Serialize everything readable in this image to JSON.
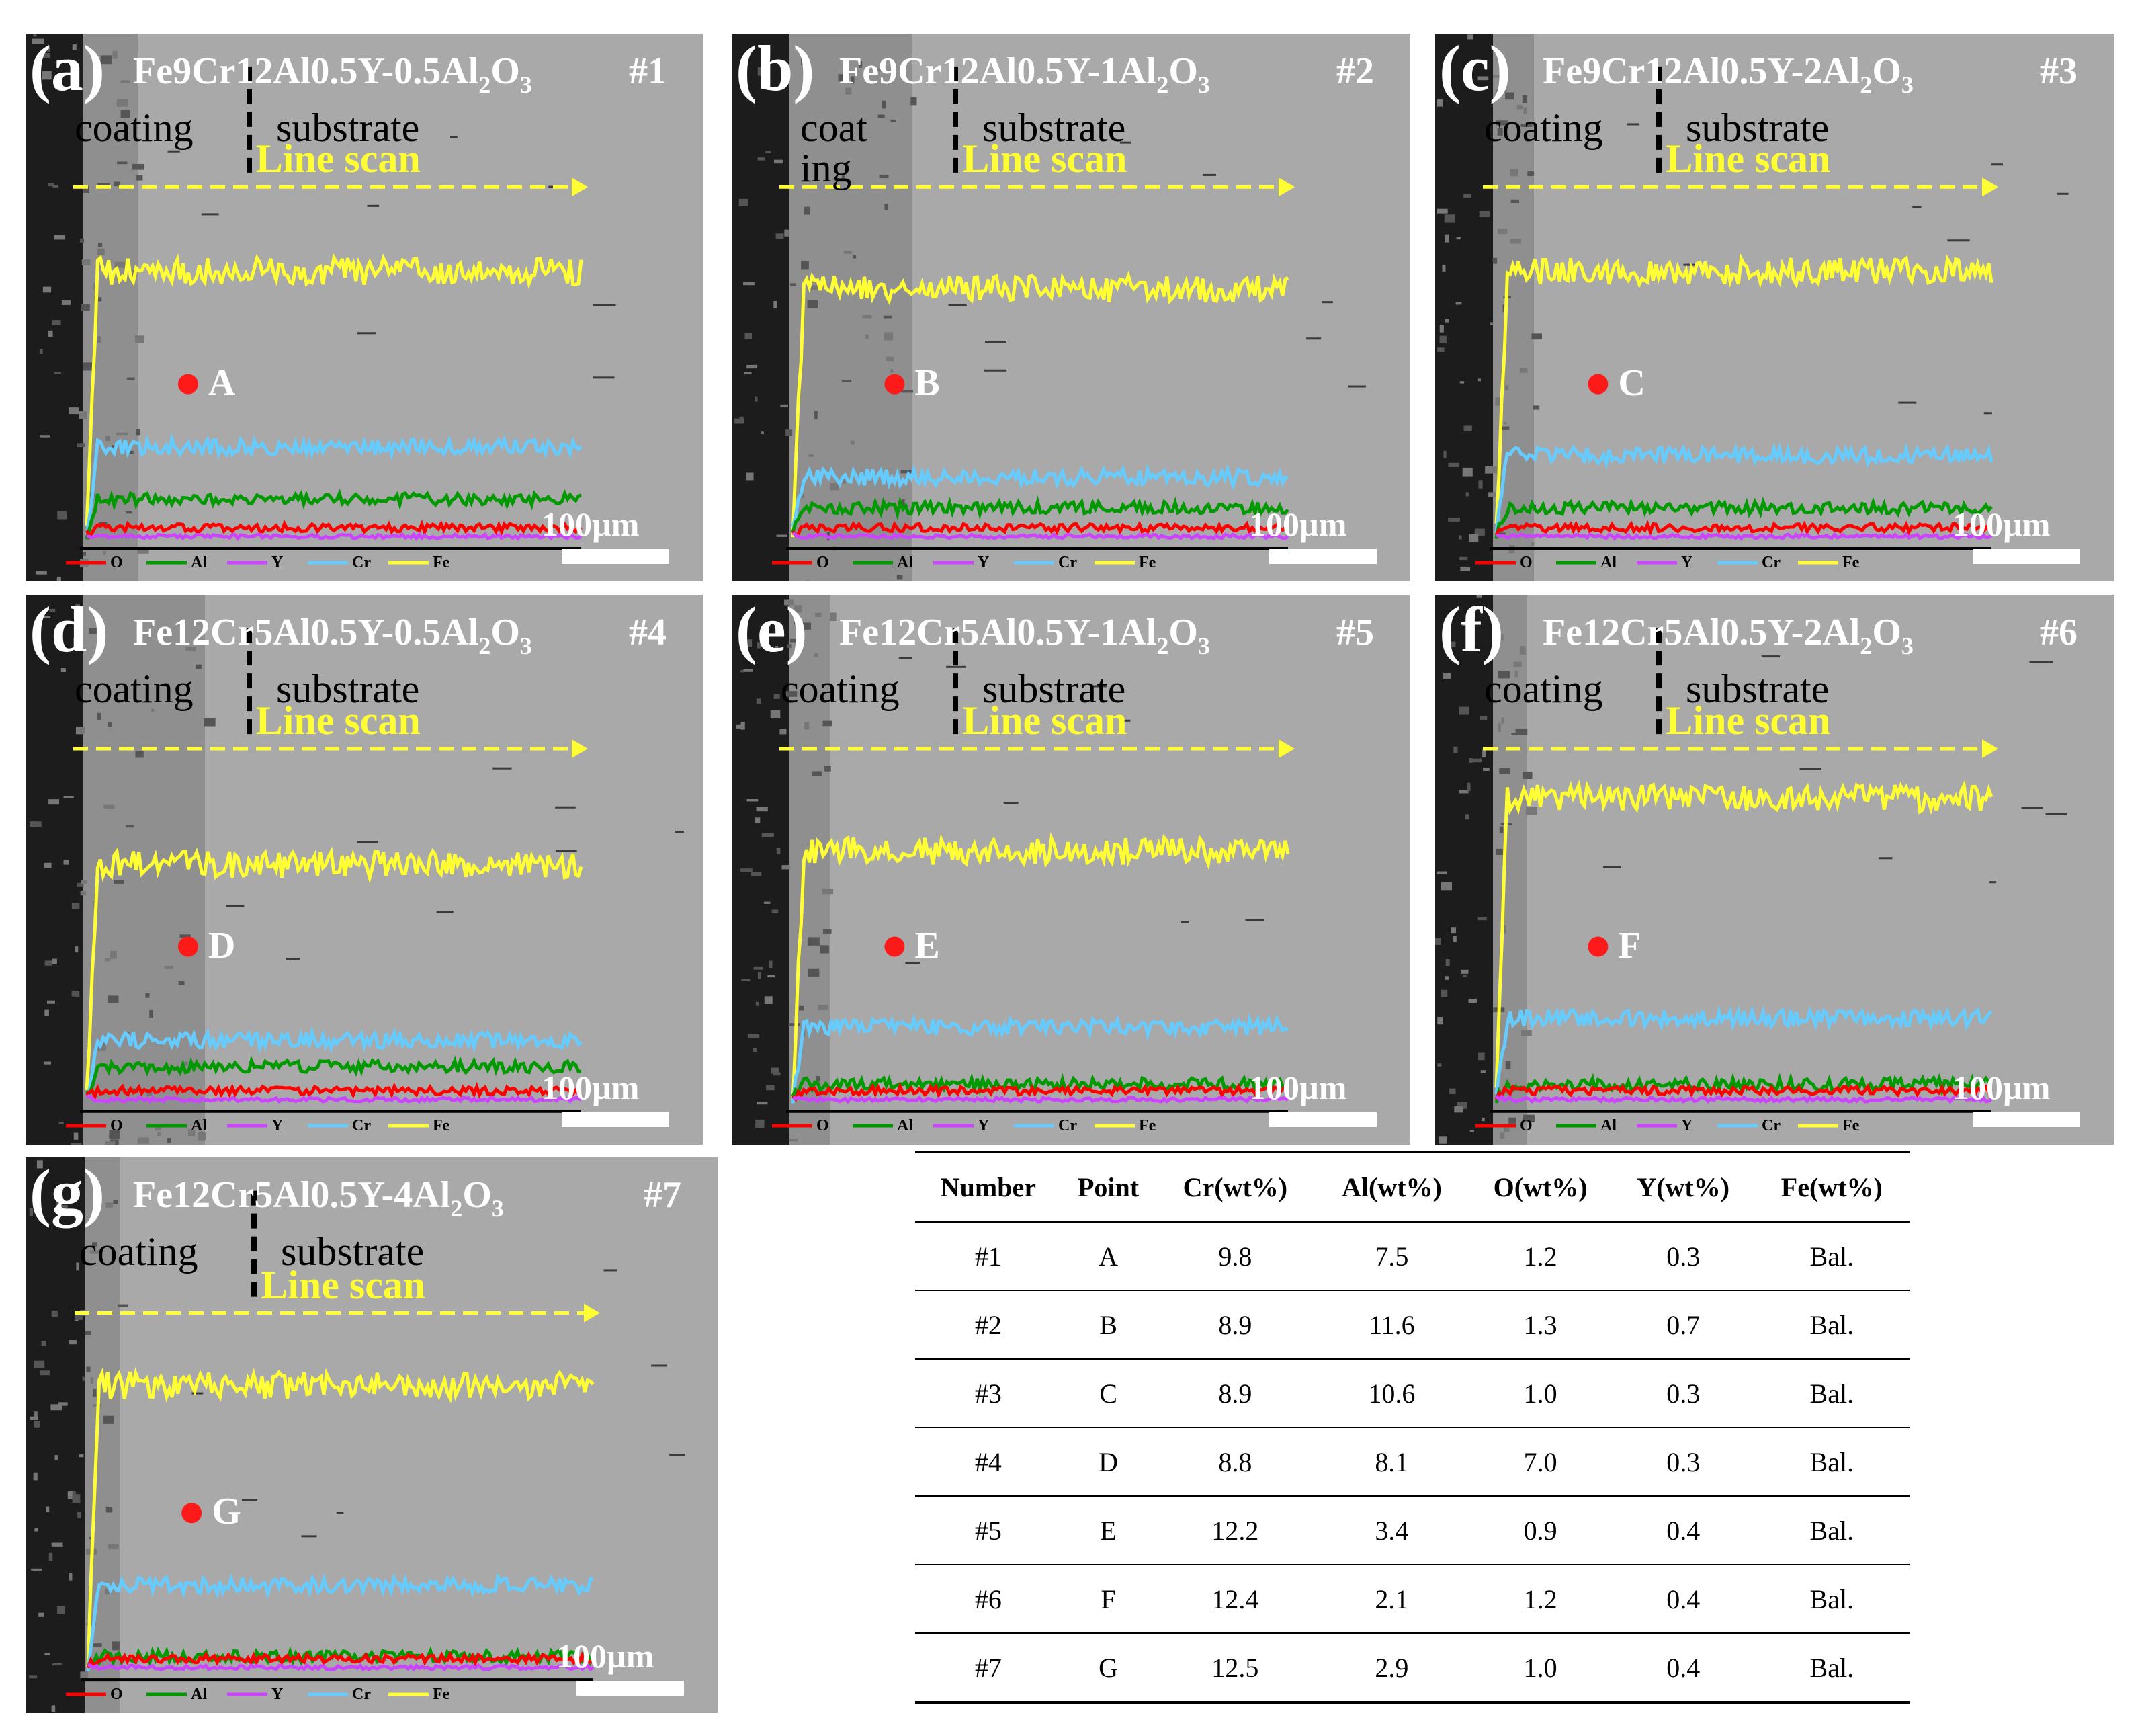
{
  "panels": [
    {
      "letter": "(a)",
      "alloy": "Fe9Cr12Al0.5Y-0.5Al",
      "sub": "2",
      "tail": "O",
      "sub2": "3",
      "number": "#1",
      "coating_label": "coating",
      "substrate_label": "substrate",
      "line_scan_label": "Line scan",
      "point": "A",
      "scale_bar": "100µm",
      "seed": 11,
      "fe_level": 0.62,
      "cr_level": 0.22,
      "al_level": 0.1,
      "coating_frac": 0.08
    },
    {
      "letter": "(b)",
      "alloy": "Fe9Cr12Al0.5Y-1Al",
      "sub": "2",
      "tail": "O",
      "sub2": "3",
      "number": "#2",
      "coating_label": "coat\ning",
      "substrate_label": "substrate",
      "line_scan_label": "Line scan",
      "point": "B",
      "scale_bar": "100µm",
      "seed": 23,
      "fe_level": 0.58,
      "cr_level": 0.15,
      "al_level": 0.08,
      "coating_frac": 0.18
    },
    {
      "letter": "(c)",
      "alloy": "Fe9Cr12Al0.5Y-2Al",
      "sub": "2",
      "tail": "O",
      "sub2": "3",
      "number": "#3",
      "coating_label": "coating",
      "substrate_label": "substrate",
      "line_scan_label": "Line scan",
      "point": "C",
      "scale_bar": "100µm",
      "seed": 37,
      "fe_level": 0.62,
      "cr_level": 0.2,
      "al_level": 0.08,
      "coating_frac": 0.06
    },
    {
      "letter": "(d)",
      "alloy": "Fe12Cr5Al0.5Y-0.5Al",
      "sub": "2",
      "tail": "O",
      "sub2": "3",
      "number": "#4",
      "coating_label": "coating",
      "substrate_label": "substrate",
      "line_scan_label": "Line scan",
      "point": "D",
      "scale_bar": "100µm",
      "seed": 41,
      "fe_level": 0.55,
      "cr_level": 0.15,
      "al_level": 0.09,
      "coating_frac": 0.18
    },
    {
      "letter": "(e)",
      "alloy": "Fe12Cr5Al0.5Y-1Al",
      "sub": "2",
      "tail": "O",
      "sub2": "3",
      "number": "#5",
      "coating_label": "coating",
      "substrate_label": "substrate",
      "line_scan_label": "Line scan",
      "point": "E",
      "scale_bar": "100µm",
      "seed": 53,
      "fe_level": 0.58,
      "cr_level": 0.18,
      "al_level": 0.05,
      "coating_frac": 0.06
    },
    {
      "letter": "(f)",
      "alloy": "Fe12Cr5Al0.5Y-2Al",
      "sub": "2",
      "tail": "O",
      "sub2": "3",
      "number": "#6",
      "coating_label": "coating",
      "substrate_label": "substrate",
      "line_scan_label": "Line scan",
      "point": "F",
      "scale_bar": "100µm",
      "seed": 67,
      "fe_level": 0.7,
      "cr_level": 0.2,
      "al_level": 0.05,
      "coating_frac": 0.05
    },
    {
      "letter": "(g)",
      "alloy": "Fe12Cr5Al0.5Y-4Al",
      "sub": "2",
      "tail": "O",
      "sub2": "3",
      "number": "#7",
      "coating_label": "coating",
      "substrate_label": "substrate",
      "line_scan_label": "Line scan",
      "point": "G",
      "scale_bar": "100µm",
      "seed": 79,
      "fe_level": 0.65,
      "cr_level": 0.2,
      "al_level": 0.04,
      "coating_frac": 0.05
    }
  ],
  "legend": {
    "items": [
      "O",
      "Al",
      "Y",
      "Cr",
      "Fe"
    ],
    "colors": [
      "#ff0000",
      "#009900",
      "#cc44ff",
      "#66ccff",
      "#ffff33"
    ]
  },
  "colors": {
    "red_point": "#ff1a1a",
    "fe_line": "#ffff33",
    "cr_line": "#66ccff",
    "al_line": "#009900",
    "o_line": "#ff0000",
    "y_line": "#cc44ff"
  },
  "table": {
    "headers": [
      "Number",
      "Point",
      "Cr(wt%)",
      "Al(wt%)",
      "O(wt%)",
      "Y(wt%)",
      "Fe(wt%)"
    ],
    "rows": [
      [
        "#1",
        "A",
        "9.8",
        "7.5",
        "1.2",
        "0.3",
        "Bal."
      ],
      [
        "#2",
        "B",
        "8.9",
        "11.6",
        "1.3",
        "0.7",
        "Bal."
      ],
      [
        "#3",
        "C",
        "8.9",
        "10.6",
        "1.0",
        "0.3",
        "Bal."
      ],
      [
        "#4",
        "D",
        "8.8",
        "8.1",
        "7.0",
        "0.3",
        "Bal."
      ],
      [
        "#5",
        "E",
        "12.2",
        "3.4",
        "0.9",
        "0.4",
        "Bal."
      ],
      [
        "#6",
        "F",
        "12.4",
        "2.1",
        "1.2",
        "0.4",
        "Bal."
      ],
      [
        "#7",
        "G",
        "12.5",
        "2.9",
        "1.0",
        "0.4",
        "Bal."
      ]
    ]
  }
}
